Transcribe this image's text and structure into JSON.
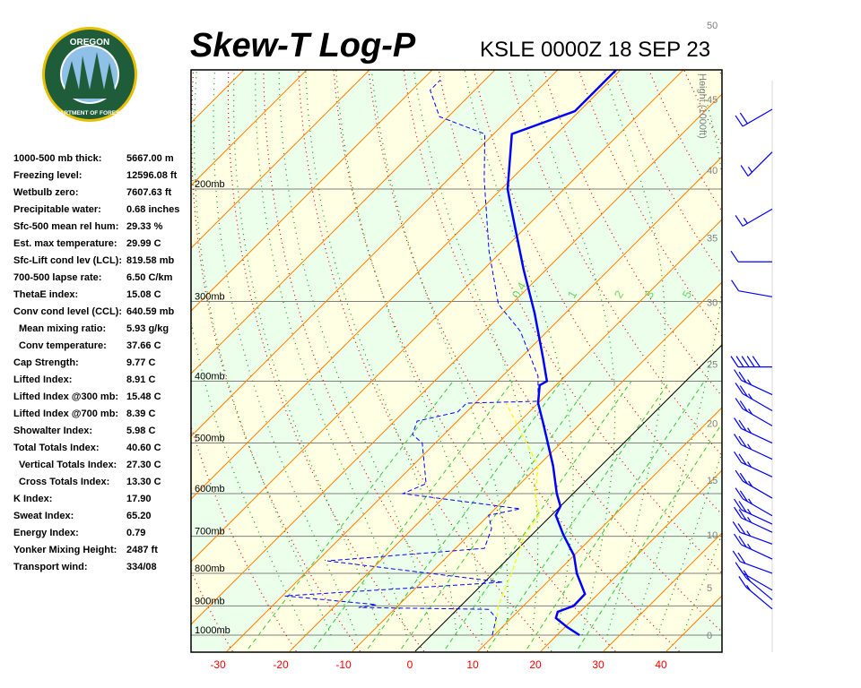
{
  "logo": {
    "text_top": "OREGON",
    "text_bottom": "DEPARTMENT OF FORESTRY"
  },
  "header": {
    "title": "Skew-T Log-P",
    "station": "KSLE 0000Z 18 SEP 23"
  },
  "stats": [
    {
      "label": "1000-500 mb thick:",
      "value": "5667.00 m",
      "indent": false
    },
    {
      "label": "Freezing level:",
      "value": "12596.08 ft",
      "indent": false
    },
    {
      "label": "Wetbulb zero:",
      "value": "7607.63 ft",
      "indent": false
    },
    {
      "label": "Precipitable water:",
      "value": "0.68 inches",
      "indent": false
    },
    {
      "label": "Sfc-500 mean rel hum:",
      "value": "29.33 %",
      "indent": false
    },
    {
      "label": "Est. max temperature:",
      "value": "29.99 C",
      "indent": false
    },
    {
      "label": "Sfc-Lift cond lev (LCL):",
      "value": "819.58 mb",
      "indent": false
    },
    {
      "label": "700-500 lapse rate:",
      "value": "6.50 C/km",
      "indent": false
    },
    {
      "label": "ThetaE index:",
      "value": "15.08 C",
      "indent": false
    },
    {
      "label": "Conv cond level (CCL):",
      "value": "640.59 mb",
      "indent": false
    },
    {
      "label": "Mean mixing ratio:",
      "value": "5.93 g/kg",
      "indent": true
    },
    {
      "label": "Conv temperature:",
      "value": "37.66 C",
      "indent": true
    },
    {
      "label": "Cap Strength:",
      "value": "9.77 C",
      "indent": false
    },
    {
      "label": "Lifted Index:",
      "value": "8.91 C",
      "indent": false
    },
    {
      "label": "Lifted Index @300 mb:",
      "value": "15.48 C",
      "indent": false
    },
    {
      "label": "Lifted Index @700 mb:",
      "value": "8.39 C",
      "indent": false
    },
    {
      "label": "Showalter Index:",
      "value": "5.98 C",
      "indent": false
    },
    {
      "label": "Total Totals Index:",
      "value": "40.60 C",
      "indent": false
    },
    {
      "label": "Vertical Totals Index:",
      "value": "27.30 C",
      "indent": true
    },
    {
      "label": "Cross Totals Index:",
      "value": "13.30 C",
      "indent": true
    },
    {
      "label": "K Index:",
      "value": "17.90",
      "indent": false
    },
    {
      "label": "Sweat Index:",
      "value": "65.20",
      "indent": false
    },
    {
      "label": "Energy Index:",
      "value": "0.79",
      "indent": false
    },
    {
      "label": "Yonker Mixing Height:",
      "value": "2487 ft",
      "indent": false
    },
    {
      "label": "Transport wind:",
      "value": "334/08",
      "indent": false
    }
  ],
  "chart_data": {
    "type": "line",
    "subtype": "skew-t log-p",
    "x_ticks": [
      -30,
      -20,
      -10,
      0,
      10,
      20,
      30,
      40
    ],
    "x_tick_labels": [
      "-30",
      "-20",
      "-10",
      "0",
      "10",
      "20",
      "30",
      "40"
    ],
    "pressure_levels": [
      200,
      300,
      400,
      500,
      600,
      700,
      800,
      900,
      1000
    ],
    "pressure_labels": [
      "200mb",
      "300mb",
      "400mb",
      "500mb",
      "600mb",
      "700mb",
      "800mb",
      "900mb",
      "1000mb"
    ],
    "pressure_range": [
      130,
      1000
    ],
    "height_axis": {
      "label": "Height (1000ft)",
      "ticks": [
        0,
        5,
        10,
        15,
        20,
        25,
        30,
        35,
        40,
        45,
        50
      ],
      "tick_labels": [
        "0",
        "5",
        "10",
        "15",
        "20",
        "25",
        "30",
        "35",
        "40",
        "45",
        "50"
      ]
    },
    "mixing_ratio_labels": [
      "0.4",
      "1",
      "2",
      "3",
      "5"
    ],
    "mixing_ratios": [
      0.4,
      1,
      2,
      3,
      5,
      8,
      12,
      20
    ],
    "colors": {
      "temperature": "#0000ff",
      "dewpoint": "#0000ff",
      "parcel": "#ffff00",
      "isotherm": "#ff8000",
      "dry_adiabat": "#e00000",
      "moist_adiabat": "#00a000",
      "mixing_ratio": "#33cc33",
      "zero_isotherm": "#000000",
      "axis_labels": "#ff0000",
      "band_a": "#ffffe4",
      "band_b": "#ebffeb"
    },
    "series": [
      {
        "key": "temperature",
        "style": "solid",
        "p": [
          1000,
          971,
          940,
          919,
          900,
          862,
          800,
          750,
          696,
          649,
          628,
          600,
          543,
          500,
          462,
          433,
          406,
          400,
          368,
          313,
          267,
          213,
          200,
          164,
          151,
          130
        ],
        "t": [
          23.6,
          20.3,
          17.1,
          16.4,
          18.0,
          17.9,
          13.3,
          10.0,
          5.0,
          0.7,
          0.0,
          -2.6,
          -7.6,
          -12.1,
          -16.4,
          -20.0,
          -22.6,
          -22.1,
          -26.4,
          -34.9,
          -43.7,
          -55.7,
          -59.0,
          -67.1,
          -60.7,
          -60.7
        ]
      },
      {
        "key": "dewpoint",
        "style": "dashed",
        "p": [
          1000,
          940,
          911,
          905,
          896,
          868,
          826,
          765,
          731,
          681,
          649,
          634,
          600,
          579,
          500,
          485,
          462,
          447,
          433,
          430,
          393,
          334,
          303,
          250,
          193,
          164,
          154,
          140,
          135
        ],
        "t": [
          9.7,
          7.6,
          5.0,
          -16.0,
          -13.6,
          -29.6,
          2.9,
          -28.4,
          -5.4,
          -7.4,
          -10.0,
          -6.0,
          -27.1,
          -25.0,
          -32.1,
          -35.0,
          -36.4,
          -31.4,
          -31.4,
          -20.3,
          -24.3,
          -34.3,
          -42.1,
          -52.1,
          -64.3,
          -71.4,
          -81.4,
          -87.1,
          -87.1
        ]
      },
      {
        "key": "parcel",
        "style": "dashed",
        "p": [
          987,
          900,
          800,
          700,
          649,
          600,
          543,
          500,
          433
        ],
        "t": [
          9.6,
          6.0,
          2.9,
          -1.0,
          -2.0,
          -6.0,
          -10.0,
          -15.5,
          -25.1
        ]
      }
    ],
    "winds": [
      {
        "p": 150,
        "dir": 300,
        "spd": 20
      },
      {
        "p": 175,
        "dir": 315,
        "spd": 15
      },
      {
        "p": 215,
        "dir": 300,
        "spd": 15
      },
      {
        "p": 260,
        "dir": 270,
        "spd": 10
      },
      {
        "p": 295,
        "dir": 260,
        "spd": 10
      },
      {
        "p": 380,
        "dir": 270,
        "spd": 50
      },
      {
        "p": 420,
        "dir": 245,
        "spd": 25
      },
      {
        "p": 445,
        "dir": 240,
        "spd": 25
      },
      {
        "p": 470,
        "dir": 240,
        "spd": 25
      },
      {
        "p": 500,
        "dir": 245,
        "spd": 25
      },
      {
        "p": 530,
        "dir": 245,
        "spd": 25
      },
      {
        "p": 565,
        "dir": 245,
        "spd": 25
      },
      {
        "p": 610,
        "dir": 240,
        "spd": 25
      },
      {
        "p": 650,
        "dir": 240,
        "spd": 25
      },
      {
        "p": 670,
        "dir": 245,
        "spd": 25
      },
      {
        "p": 690,
        "dir": 245,
        "spd": 25
      },
      {
        "p": 720,
        "dir": 250,
        "spd": 25
      },
      {
        "p": 760,
        "dir": 245,
        "spd": 25
      },
      {
        "p": 800,
        "dir": 250,
        "spd": 20
      },
      {
        "p": 850,
        "dir": 240,
        "spd": 15
      },
      {
        "p": 880,
        "dir": 230,
        "spd": 15
      },
      {
        "p": 910,
        "dir": 230,
        "spd": 15
      }
    ]
  }
}
